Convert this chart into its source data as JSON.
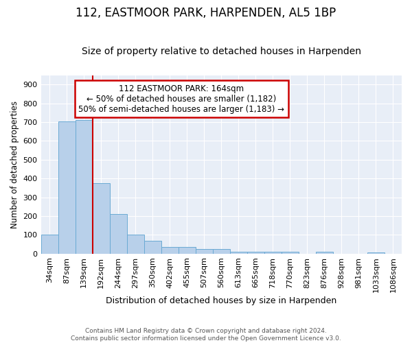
{
  "title": "112, EASTMOOR PARK, HARPENDEN, AL5 1BP",
  "subtitle": "Size of property relative to detached houses in Harpenden",
  "xlabel": "Distribution of detached houses by size in Harpenden",
  "ylabel": "Number of detached properties",
  "footer_line1": "Contains HM Land Registry data © Crown copyright and database right 2024.",
  "footer_line2": "Contains public sector information licensed under the Open Government Licence v3.0.",
  "bin_labels": [
    "34sqm",
    "87sqm",
    "139sqm",
    "192sqm",
    "244sqm",
    "297sqm",
    "350sqm",
    "402sqm",
    "455sqm",
    "507sqm",
    "560sqm",
    "613sqm",
    "665sqm",
    "718sqm",
    "770sqm",
    "823sqm",
    "876sqm",
    "928sqm",
    "981sqm",
    "1033sqm",
    "1086sqm"
  ],
  "bar_values": [
    100,
    705,
    710,
    375,
    210,
    100,
    70,
    35,
    35,
    25,
    25,
    10,
    10,
    10,
    10,
    0,
    10,
    0,
    0,
    8,
    0
  ],
  "bar_color": "#b8d0ea",
  "bar_edgecolor": "#6aaad4",
  "vline_index": 3,
  "vline_color": "#cc0000",
  "annotation_text": "112 EASTMOOR PARK: 164sqm\n← 50% of detached houses are smaller (1,182)\n50% of semi-detached houses are larger (1,183) →",
  "annotation_box_color": "#cc0000",
  "ylim": [
    0,
    950
  ],
  "yticks": [
    0,
    100,
    200,
    300,
    400,
    500,
    600,
    700,
    800,
    900
  ],
  "fig_bg": "#ffffff",
  "plot_bg": "#e8eef7",
  "grid_color": "#ffffff",
  "title_fontsize": 12,
  "subtitle_fontsize": 10,
  "annot_fontsize": 8.5
}
